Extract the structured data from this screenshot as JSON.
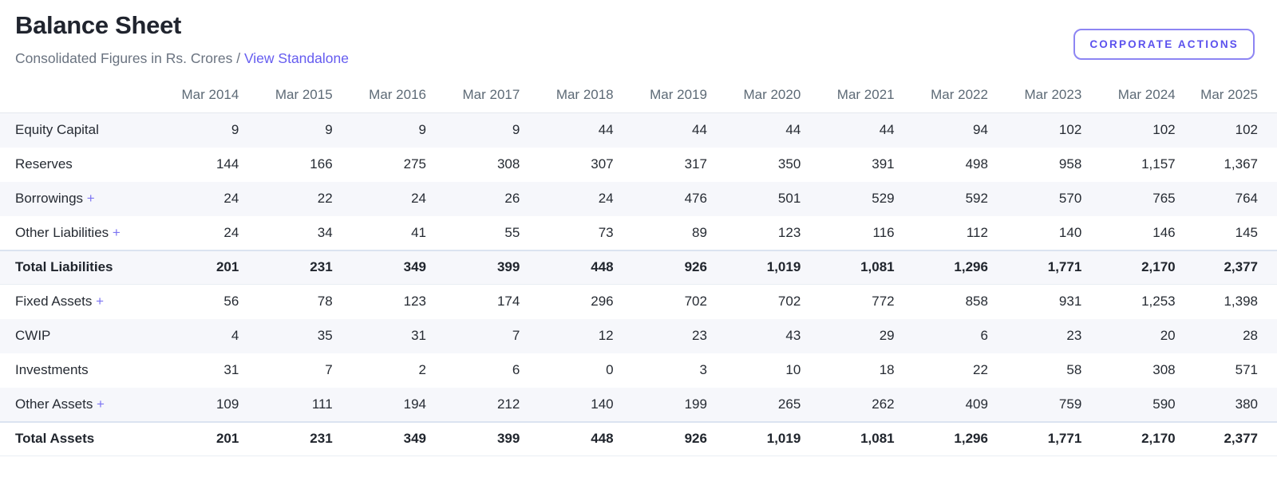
{
  "header": {
    "title": "Balance Sheet",
    "subtitle_prefix": "Consolidated Figures in Rs. Crores /",
    "standalone_link_label": "View Standalone",
    "corporate_actions_label": "CORPORATE ACTIONS"
  },
  "colors": {
    "accent_purple": "#655cf0",
    "button_border": "#8d85f3",
    "stripe_background": "#f6f7fb",
    "header_text": "#5d6a76",
    "title_text": "#20242e"
  },
  "table": {
    "expand_symbol": "+",
    "columns": [
      "Mar 2014",
      "Mar 2015",
      "Mar 2016",
      "Mar 2017",
      "Mar 2018",
      "Mar 2019",
      "Mar 2020",
      "Mar 2021",
      "Mar 2022",
      "Mar 2023",
      "Mar 2024",
      "Mar 2025"
    ],
    "rows": [
      {
        "label": "Equity Capital",
        "expandable": false,
        "bold": false,
        "values": [
          "9",
          "9",
          "9",
          "9",
          "44",
          "44",
          "44",
          "44",
          "94",
          "102",
          "102",
          "102"
        ]
      },
      {
        "label": "Reserves",
        "expandable": false,
        "bold": false,
        "values": [
          "144",
          "166",
          "275",
          "308",
          "307",
          "317",
          "350",
          "391",
          "498",
          "958",
          "1,157",
          "1,367"
        ]
      },
      {
        "label": "Borrowings",
        "expandable": true,
        "bold": false,
        "values": [
          "24",
          "22",
          "24",
          "26",
          "24",
          "476",
          "501",
          "529",
          "592",
          "570",
          "765",
          "764"
        ]
      },
      {
        "label": "Other Liabilities",
        "expandable": true,
        "bold": false,
        "values": [
          "24",
          "34",
          "41",
          "55",
          "73",
          "89",
          "123",
          "116",
          "112",
          "140",
          "146",
          "145"
        ]
      },
      {
        "label": "Total Liabilities",
        "expandable": false,
        "bold": true,
        "values": [
          "201",
          "231",
          "349",
          "399",
          "448",
          "926",
          "1,019",
          "1,081",
          "1,296",
          "1,771",
          "2,170",
          "2,377"
        ]
      },
      {
        "label": "Fixed Assets",
        "expandable": true,
        "bold": false,
        "values": [
          "56",
          "78",
          "123",
          "174",
          "296",
          "702",
          "702",
          "772",
          "858",
          "931",
          "1,253",
          "1,398"
        ]
      },
      {
        "label": "CWIP",
        "expandable": false,
        "bold": false,
        "values": [
          "4",
          "35",
          "31",
          "7",
          "12",
          "23",
          "43",
          "29",
          "6",
          "23",
          "20",
          "28"
        ]
      },
      {
        "label": "Investments",
        "expandable": false,
        "bold": false,
        "values": [
          "31",
          "7",
          "2",
          "6",
          "0",
          "3",
          "10",
          "18",
          "22",
          "58",
          "308",
          "571"
        ]
      },
      {
        "label": "Other Assets",
        "expandable": true,
        "bold": false,
        "values": [
          "109",
          "111",
          "194",
          "212",
          "140",
          "199",
          "265",
          "262",
          "409",
          "759",
          "590",
          "380"
        ]
      },
      {
        "label": "Total Assets",
        "expandable": false,
        "bold": true,
        "values": [
          "201",
          "231",
          "349",
          "399",
          "448",
          "926",
          "1,019",
          "1,081",
          "1,296",
          "1,771",
          "2,170",
          "2,377"
        ]
      }
    ]
  }
}
